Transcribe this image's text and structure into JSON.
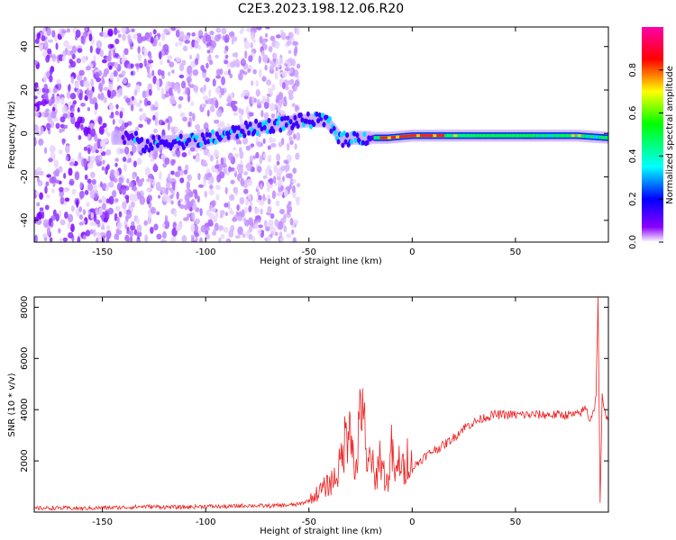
{
  "title": "C2E3.2023.198.12.06.R20",
  "chart_data": [
    {
      "type": "heatmap",
      "xlabel": "Height of straight line (km)",
      "ylabel": "Frequency (Hz)",
      "xlim": [
        -183,
        95
      ],
      "ylim": [
        -50,
        49
      ],
      "xticks": [
        -150,
        -100,
        -50,
        0,
        50
      ],
      "yticks": [
        -40,
        -20,
        0,
        20,
        40
      ],
      "grid": false,
      "ridge_line": {
        "x": [
          -133,
          -120,
          -100,
          -80,
          -60,
          -50,
          -42,
          -38,
          -34,
          -28,
          -20,
          -12,
          0,
          20,
          50,
          80,
          95
        ],
        "y": [
          -6,
          -4,
          -3,
          2,
          5,
          6,
          6,
          2,
          -3,
          -2,
          -2,
          -2,
          -1,
          -1,
          -1,
          -1,
          -2
        ]
      },
      "colorbar": {
        "label": "Normalized spectral amplitude",
        "min": 0.0,
        "max": 1.0,
        "ticks": [
          0.0,
          0.2,
          0.4,
          0.6,
          0.8
        ],
        "colors": [
          "#ffffff",
          "#8a00ff",
          "#0000ff",
          "#00ffff",
          "#00ff00",
          "#ffff00",
          "#ff0000",
          "#ff00aa"
        ]
      }
    },
    {
      "type": "line",
      "xlabel": "Height of straight line (km)",
      "ylabel": "SNR (10 * v/v)",
      "xlim": [
        -183,
        95
      ],
      "ylim": [
        0,
        8400
      ],
      "xticks": [
        -150,
        -100,
        -50,
        0,
        50
      ],
      "yticks": [
        2000,
        4000,
        6000,
        8000
      ],
      "grid": false,
      "series": [
        {
          "color": "#ee2222",
          "x": [
            -183,
            -170,
            -160,
            -150,
            -140,
            -130,
            -120,
            -110,
            -100,
            -90,
            -80,
            -70,
            -60,
            -55,
            -50,
            -45,
            -40,
            -37,
            -35,
            -33,
            -31,
            -30,
            -28,
            -26,
            -24,
            -22,
            -20,
            -18,
            -16,
            -14,
            -12,
            -10,
            -8,
            -6,
            -4,
            -2,
            0,
            5,
            10,
            15,
            20,
            25,
            30,
            35,
            40,
            50,
            60,
            70,
            80,
            82,
            84,
            86,
            88,
            89,
            90,
            91,
            92,
            93,
            95
          ],
          "y": [
            150,
            160,
            140,
            170,
            180,
            220,
            200,
            190,
            230,
            210,
            260,
            240,
            270,
            300,
            450,
            800,
            1100,
            1400,
            1800,
            2600,
            3500,
            4300,
            1200,
            2800,
            4900,
            1300,
            2500,
            900,
            2300,
            1600,
            1100,
            2400,
            1300,
            2100,
            1500,
            2300,
            1700,
            2100,
            2400,
            2600,
            2900,
            3300,
            3500,
            3700,
            3800,
            3800,
            3800,
            3800,
            3800,
            3900,
            4100,
            3600,
            4000,
            4500,
            8400,
            300,
            4500,
            3900,
            3700
          ]
        }
      ]
    }
  ]
}
